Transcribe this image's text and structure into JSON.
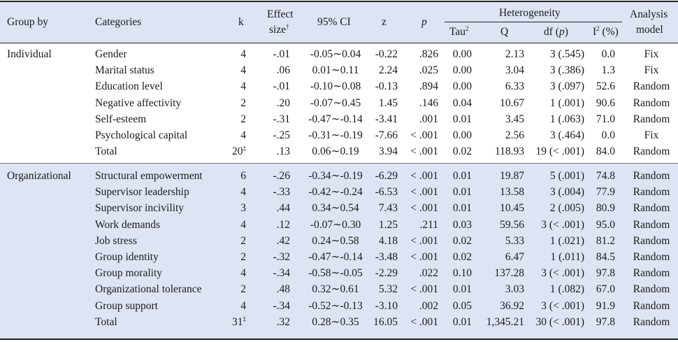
{
  "header": {
    "group_by": "Group by",
    "categories": "Categories",
    "k": "k",
    "effect_line1": "Effect",
    "effect_line2": "size",
    "effect_mark": "†",
    "ci": "95% CI",
    "z": "z",
    "p": "p",
    "heterogeneity": "Heterogeneity",
    "tau": "Tau",
    "tau_sup": "2",
    "q": "Q",
    "df_prefix": "df (",
    "df_p": "p",
    "df_suffix": ")",
    "i_letter": "I",
    "i_sup": "2",
    "i_suffix": " (%)",
    "model_line1": "Analysis",
    "model_line2": "model"
  },
  "individual": {
    "group": "Individual",
    "rows": [
      {
        "cat": "Gender",
        "k": "4",
        "es": "-.01",
        "ci": "-0.05∼0.04",
        "z": "-0.22",
        "p": ".826",
        "tau": "0.00",
        "q": "2.13",
        "df": "3 (.545)",
        "i2": "0.0",
        "model": "Fix"
      },
      {
        "cat": "Marital status",
        "k": "4",
        "es": ".06",
        "ci": "0.01∼0.11",
        "z": "2.24",
        "p": ".025",
        "tau": "0.00",
        "q": "3.04",
        "df": "3 (.386)",
        "i2": "1.3",
        "model": "Fix"
      },
      {
        "cat": "Education level",
        "k": "4",
        "es": "-.01",
        "ci": "-0.10∼0.08",
        "z": "-0.13",
        "p": ".894",
        "tau": "0.00",
        "q": "6.33",
        "df": "3 (.097)",
        "i2": "52.6",
        "model": "Random"
      },
      {
        "cat": "Negative affectivity",
        "k": "2",
        "es": ".20",
        "ci": "-0.07∼0.45",
        "z": "1.45",
        "p": ".146",
        "tau": "0.04",
        "q": "10.67",
        "df": "1 (.001)",
        "i2": "90.6",
        "model": "Random"
      },
      {
        "cat": "Self-esteem",
        "k": "2",
        "es": "-.31",
        "ci": "-0.47∼-0.14",
        "z": "-3.41",
        "p": ".001",
        "tau": "0.01",
        "q": "3.45",
        "df": "1 (.063)",
        "i2": "71.0",
        "model": "Random"
      },
      {
        "cat": "Psychological capital",
        "k": "4",
        "es": "-.25",
        "ci": "-0.31∼-0.19",
        "z": "-7.66",
        "p": "< .001",
        "tau": "0.00",
        "q": "2.56",
        "df": "3 (.464)",
        "i2": "0.0",
        "model": "Fix"
      },
      {
        "cat": "Total",
        "k": "20",
        "k_mark": "‡",
        "es": ".13",
        "ci": "0.06∼0.19",
        "z": "3.94",
        "p": "< .001",
        "tau": "0.02",
        "q": "118.93",
        "df": "19 (< .001)",
        "i2": "84.0",
        "model": "Random"
      }
    ]
  },
  "organizational": {
    "group": "Organizational",
    "rows": [
      {
        "cat": "Structural empowerment",
        "k": "6",
        "es": "-.26",
        "ci": "-0.34∼-0.19",
        "z": "-6.29",
        "p": "< .001",
        "tau": "0.01",
        "q": "19.87",
        "df": "5 (.001)",
        "i2": "74.8",
        "model": "Random"
      },
      {
        "cat": "Supervisor leadership",
        "k": "4",
        "es": "-.33",
        "ci": "-0.42∼-0.24",
        "z": "-6.53",
        "p": "< .001",
        "tau": "0.01",
        "q": "13.58",
        "df": "3 (.004)",
        "i2": "77.9",
        "model": "Random"
      },
      {
        "cat": "Supervisor incivility",
        "k": "3",
        "es": ".44",
        "ci": "0.34∼0.54",
        "z": "7.43",
        "p": "< .001",
        "tau": "0.01",
        "q": "10.45",
        "df": "2 (.005)",
        "i2": "80.9",
        "model": "Random"
      },
      {
        "cat": "Work demands",
        "k": "4",
        "es": ".12",
        "ci": "-0.07∼0.30",
        "z": "1.25",
        "p": ".211",
        "tau": "0.03",
        "q": "59.56",
        "df": "3 (< .001)",
        "i2": "95.0",
        "model": "Random"
      },
      {
        "cat": "Job stress",
        "k": "2",
        "es": ".42",
        "ci": "0.24∼0.58",
        "z": "4.18",
        "p": "< .001",
        "tau": "0.02",
        "q": "5.33",
        "df": "1 (.021)",
        "i2": "81.2",
        "model": "Random"
      },
      {
        "cat": "Group identity",
        "k": "2",
        "es": "-.32",
        "ci": "-0.47∼-0.14",
        "z": "-3.48",
        "p": "< .001",
        "tau": "0.02",
        "q": "6.47",
        "df": "1 (.011)",
        "i2": "84.5",
        "model": "Random"
      },
      {
        "cat": "Group morality",
        "k": "4",
        "es": "-.34",
        "ci": "-0.58∼-0.05",
        "z": "-2.29",
        "p": ".022",
        "tau": "0.10",
        "q": "137.28",
        "df": "3 (< .001)",
        "i2": "97.8",
        "model": "Random"
      },
      {
        "cat": "Organizational tolerance",
        "k": "2",
        "es": ".48",
        "ci": "0.32∼0.61",
        "z": "5.32",
        "p": "< .001",
        "tau": "0.01",
        "q": "3.03",
        "df": "1 (.082)",
        "i2": "67.0",
        "model": "Random"
      },
      {
        "cat": "Group support",
        "k": "4",
        "es": "-.34",
        "ci": "-0.52∼-0.13",
        "z": "-3.10",
        "p": ".002",
        "tau": "0.05",
        "q": "36.92",
        "df": "3 (< .001)",
        "i2": "91.9",
        "model": "Random"
      },
      {
        "cat": "Total",
        "k": "31",
        "k_mark": "‡",
        "es": ".32",
        "ci": "0.28∼0.35",
        "z": "16.05",
        "p": "< .001",
        "tau": "0.01",
        "q": "1,345.21",
        "df": "30 (< .001)",
        "i2": "97.8",
        "model": "Random"
      }
    ]
  },
  "colors": {
    "header_bg": "#dde5f4",
    "org_bg": "#dde5f4",
    "rule": "#222222"
  }
}
